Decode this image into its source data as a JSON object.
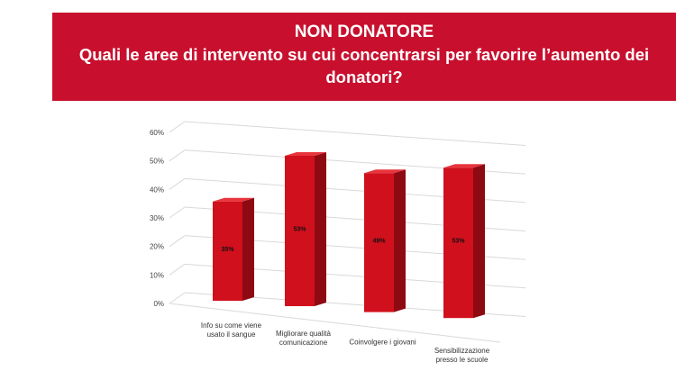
{
  "header": {
    "title": "NON DONATORE",
    "question": "Quali le aree di intervento su cui concentrarsi per favorire l’aumento dei donatori?"
  },
  "colors": {
    "banner": "#c8102e",
    "bar_front": "#d0101c",
    "bar_side": "#8e0a12",
    "bar_top": "#e8343c",
    "grid": "#d9d9d9"
  },
  "chart_data": {
    "type": "bar",
    "style": "3d-column",
    "title": "",
    "xlabel": "",
    "ylabel": "",
    "ylim": [
      0,
      0.6
    ],
    "yticks": [
      "0%",
      "10%",
      "20%",
      "30%",
      "40%",
      "50%",
      "60%"
    ],
    "grid": true,
    "legend": "none",
    "categories": [
      [
        "Info su come viene",
        "usato il sangue"
      ],
      [
        "Migliorare qualità",
        "comunicazione"
      ],
      [
        "Coinvolgere i giovani"
      ],
      [
        "Sensibilizzazione",
        "presso le scuole"
      ]
    ],
    "values": [
      0.35,
      0.53,
      0.49,
      0.53
    ],
    "data_labels": [
      "35%",
      "53%",
      "49%",
      "53%"
    ]
  }
}
